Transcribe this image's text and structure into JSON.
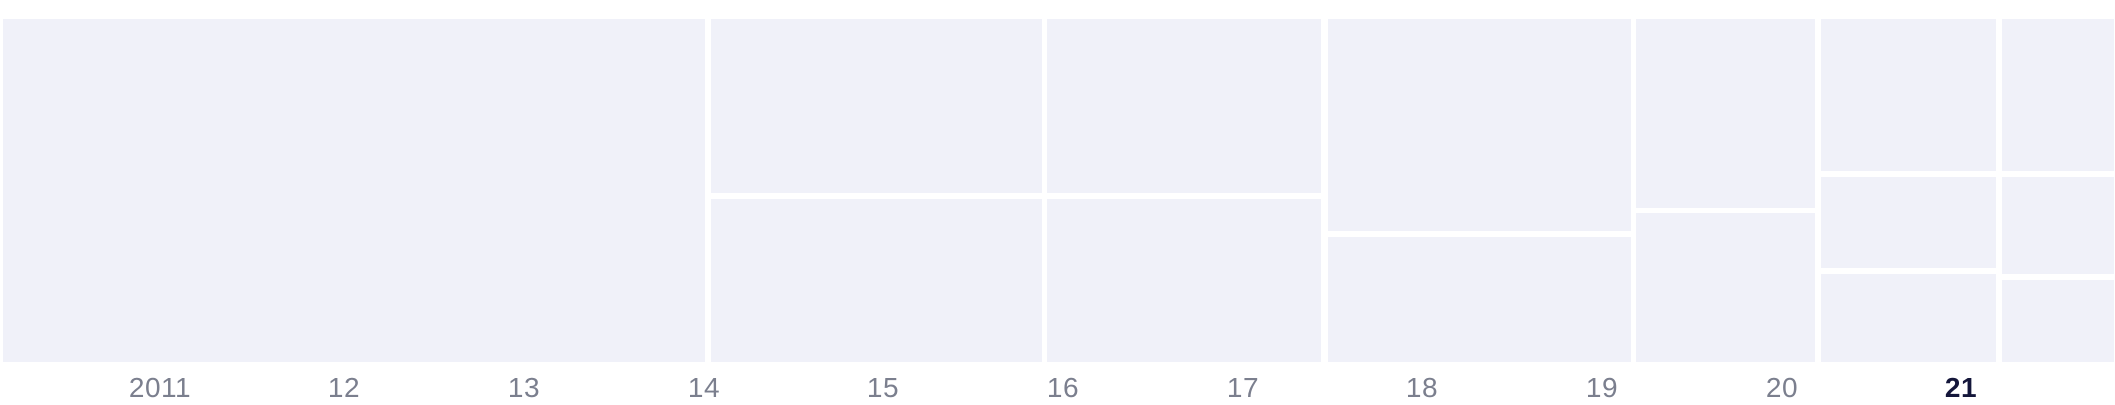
{
  "timeline": {
    "labels": [
      {
        "text": "2011",
        "current": false
      },
      {
        "text": "12",
        "current": false
      },
      {
        "text": "13",
        "current": false
      },
      {
        "text": "14",
        "current": false
      },
      {
        "text": "15",
        "current": false
      },
      {
        "text": "16",
        "current": false
      },
      {
        "text": "17",
        "current": false
      },
      {
        "text": "18",
        "current": false
      },
      {
        "text": "19",
        "current": false
      },
      {
        "text": "20",
        "current": false
      },
      {
        "text": "21",
        "current": true
      }
    ],
    "current_label": "21"
  },
  "colors": {
    "cell": "#f0f1f9",
    "label": "#7b7f8e",
    "label_current": "#14163a",
    "background": "#ffffff"
  }
}
